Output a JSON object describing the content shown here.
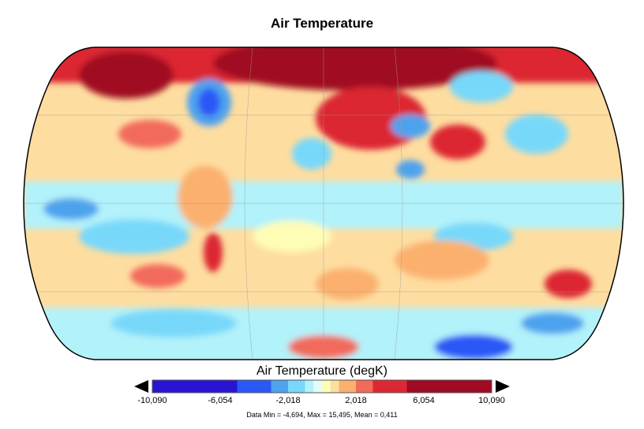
{
  "title": "Air Temperature",
  "colorbar": {
    "label": "Air Temperature (degK)",
    "min": -10.09,
    "max": 10.09,
    "ticks": [
      "-10,090",
      "-6,054",
      "-2,018",
      "2,018",
      "6,054",
      "10,090"
    ],
    "boundaries": [
      -10.09,
      -5.045,
      -3.027,
      -2.018,
      -1.009,
      -0.5,
      0,
      0.5,
      1.009,
      2.018,
      3.027,
      5.045,
      10.09
    ],
    "colors": [
      "#2a14d4",
      "#2a58f6",
      "#4ea2ee",
      "#78d8fa",
      "#b2f2fa",
      "#e2fbfb",
      "#fefdb6",
      "#fedda0",
      "#fbb06e",
      "#f26a5c",
      "#dc2832",
      "#a00a22"
    ],
    "extend": "both"
  },
  "stats": "Data Min = -4,694, Max = 15,495, Mean = 0,411",
  "projection": "Robinson"
}
